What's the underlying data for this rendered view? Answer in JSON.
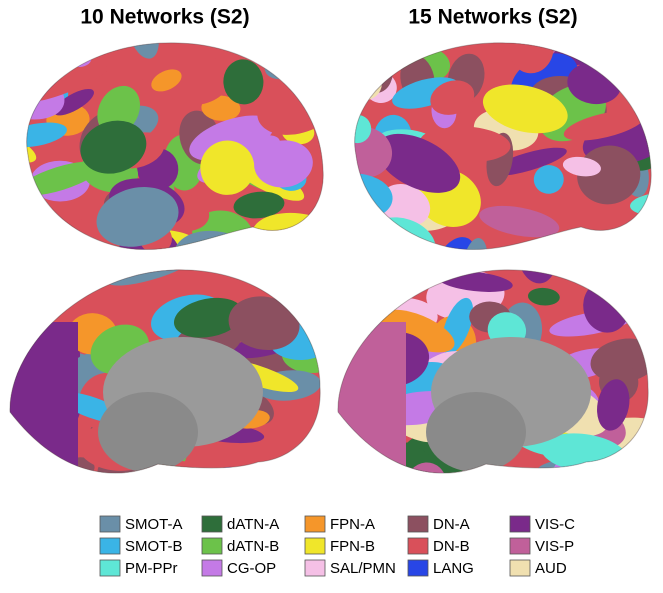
{
  "titles": [
    "10 Networks (S2)",
    "15 Networks (S2)"
  ],
  "legend": [
    {
      "label": "SMOT-A",
      "color": "#6a8fa8"
    },
    {
      "label": "SMOT-B",
      "color": "#3ab4e6"
    },
    {
      "label": "PM-PPr",
      "color": "#5ee6d6"
    },
    {
      "label": "dATN-A",
      "color": "#2e6e3a"
    },
    {
      "label": "dATN-B",
      "color": "#6cc24a"
    },
    {
      "label": "CG-OP",
      "color": "#c47ae6"
    },
    {
      "label": "FPN-A",
      "color": "#f5962a"
    },
    {
      "label": "FPN-B",
      "color": "#f0e62a"
    },
    {
      "label": "SAL/PMN",
      "color": "#f5c0e6"
    },
    {
      "label": "DN-A",
      "color": "#8c5060"
    },
    {
      "label": "DN-B",
      "color": "#d9505a"
    },
    {
      "label": "LANG",
      "color": "#2846e6"
    },
    {
      "label": "VIS-C",
      "color": "#7a2a8a"
    },
    {
      "label": "VIS-P",
      "color": "#c0609a"
    },
    {
      "label": "AUD",
      "color": "#f0e0b0"
    }
  ]
}
